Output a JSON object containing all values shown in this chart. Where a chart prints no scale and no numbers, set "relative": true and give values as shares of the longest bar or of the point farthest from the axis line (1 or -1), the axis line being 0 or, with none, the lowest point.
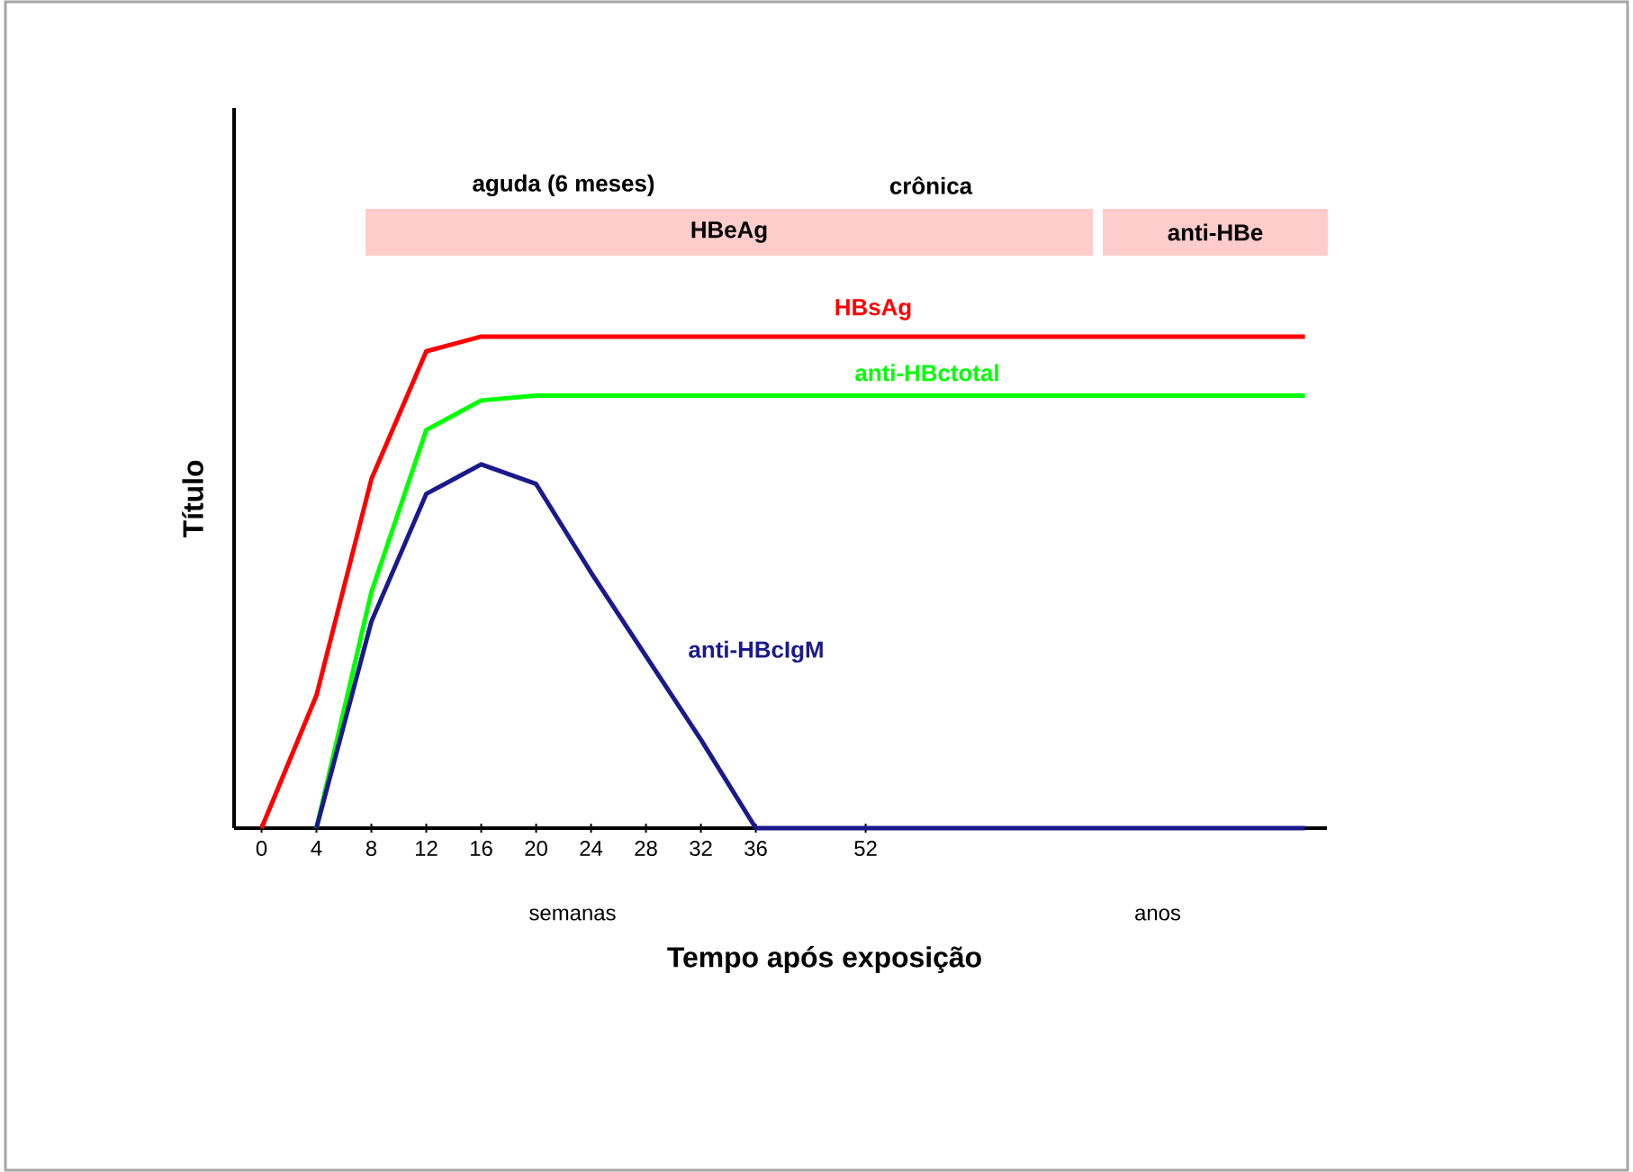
{
  "chart_data": {
    "type": "line",
    "relative": true,
    "xlabel": "Tempo após exposição",
    "ylabel": "Título",
    "categories": [
      "0",
      "4",
      "8",
      "12",
      "16",
      "20",
      "24",
      "28",
      "32",
      "36",
      null,
      "52",
      null,
      null,
      null,
      null,
      null,
      null,
      null,
      null
    ],
    "series": [
      {
        "name": "HBsAg",
        "color": "#ff0000",
        "values": [
          0,
          0.27,
          0.71,
          0.97,
          1,
          1,
          1,
          1,
          1,
          1,
          1,
          1,
          1,
          1,
          1,
          1,
          1,
          1,
          1,
          1
        ]
      },
      {
        "name": "anti-HBctotal",
        "color": "#00ff00",
        "values": [
          null,
          0,
          0.48,
          0.81,
          0.87,
          0.88,
          0.88,
          0.88,
          0.88,
          0.88,
          0.88,
          0.88,
          0.88,
          0.88,
          0.88,
          0.88,
          0.88,
          0.88,
          0.88,
          0.88
        ]
      },
      {
        "name": "anti-HBcIgM",
        "color": "#1a1a8c",
        "values": [
          null,
          0,
          0.42,
          0.68,
          0.74,
          0.7,
          0.52,
          0.35,
          0.18,
          0,
          0,
          0,
          0,
          0,
          0,
          0,
          0,
          0,
          0,
          0
        ]
      }
    ],
    "annotations": [
      "aguda (6 meses)",
      "crônica",
      "HBeAg",
      "anti-HBe",
      "semanas",
      "anos"
    ]
  }
}
